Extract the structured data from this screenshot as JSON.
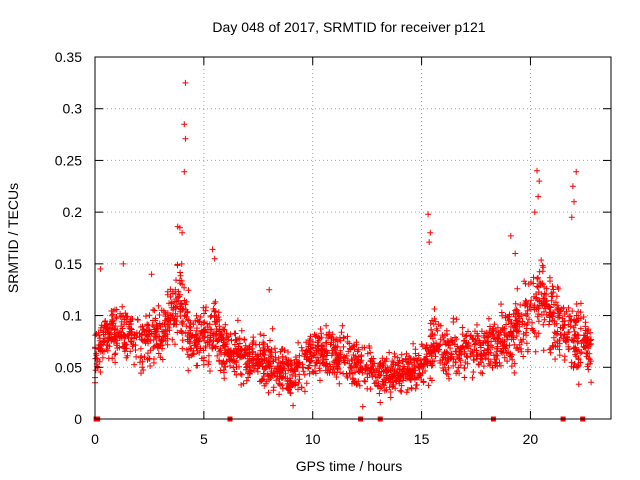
{
  "chart_data": {
    "type": "scatter",
    "title": "Day 048 of 2017, SRMTID for receiver p121",
    "xlabel": "GPS time / hours",
    "ylabel": "SRMTID / TECUs",
    "xlim": [
      0,
      23.7
    ],
    "ylim": [
      0,
      0.35
    ],
    "x_ticks": [
      0,
      5,
      10,
      15,
      20
    ],
    "x_tick_labels": [
      "0",
      "5",
      "10",
      "15",
      "20"
    ],
    "y_ticks": [
      0,
      0.05,
      0.1,
      0.15,
      0.2,
      0.25,
      0.3,
      0.35
    ],
    "y_tick_labels": [
      "0",
      "0.05",
      "0.1",
      "0.15",
      "0.2",
      "0.25",
      "0.3",
      "0.35"
    ],
    "grid": true,
    "marker": "+",
    "series_color": "#ff0000",
    "baseline_markers_x": [
      0.05,
      0.12,
      6.2,
      12.2,
      13.1,
      18.3,
      21.5,
      22.4
    ],
    "envelope": {
      "hours": [
        0,
        1,
        2,
        3,
        3.5,
        4,
        4.5,
        5,
        5.5,
        6,
        7,
        8,
        9,
        10,
        11,
        12,
        13,
        14,
        15,
        15.5,
        16,
        17,
        18,
        19,
        19.5,
        20,
        20.5,
        21,
        21.5,
        22,
        22.5,
        22.8
      ],
      "center": [
        0.07,
        0.085,
        0.075,
        0.08,
        0.1,
        0.11,
        0.07,
        0.08,
        0.09,
        0.065,
        0.06,
        0.055,
        0.045,
        0.065,
        0.06,
        0.055,
        0.045,
        0.045,
        0.05,
        0.07,
        0.065,
        0.065,
        0.07,
        0.08,
        0.09,
        0.1,
        0.12,
        0.1,
        0.09,
        0.08,
        0.075,
        0.07
      ],
      "spread": [
        0.025,
        0.03,
        0.03,
        0.03,
        0.035,
        0.04,
        0.03,
        0.03,
        0.035,
        0.025,
        0.025,
        0.025,
        0.025,
        0.025,
        0.025,
        0.025,
        0.02,
        0.02,
        0.02,
        0.03,
        0.025,
        0.025,
        0.025,
        0.03,
        0.035,
        0.04,
        0.045,
        0.04,
        0.04,
        0.04,
        0.03,
        0.03
      ]
    },
    "coverage_hours": [
      0,
      22.8
    ],
    "point_count": 2200,
    "outliers": [
      {
        "x": 4.15,
        "y": 0.325
      },
      {
        "x": 4.1,
        "y": 0.285
      },
      {
        "x": 4.15,
        "y": 0.271
      },
      {
        "x": 4.1,
        "y": 0.239
      },
      {
        "x": 3.8,
        "y": 0.186
      },
      {
        "x": 3.9,
        "y": 0.185
      },
      {
        "x": 4.0,
        "y": 0.18
      },
      {
        "x": 5.4,
        "y": 0.164
      },
      {
        "x": 5.5,
        "y": 0.155
      },
      {
        "x": 15.3,
        "y": 0.198
      },
      {
        "x": 15.4,
        "y": 0.18
      },
      {
        "x": 15.35,
        "y": 0.171
      },
      {
        "x": 20.3,
        "y": 0.24
      },
      {
        "x": 20.4,
        "y": 0.23
      },
      {
        "x": 20.35,
        "y": 0.215
      },
      {
        "x": 20.2,
        "y": 0.2
      },
      {
        "x": 22.1,
        "y": 0.239
      },
      {
        "x": 21.95,
        "y": 0.225
      },
      {
        "x": 22.0,
        "y": 0.21
      },
      {
        "x": 21.9,
        "y": 0.195
      },
      {
        "x": 19.1,
        "y": 0.177
      },
      {
        "x": 19.3,
        "y": 0.16
      },
      {
        "x": 0.25,
        "y": 0.145
      },
      {
        "x": 1.3,
        "y": 0.15
      },
      {
        "x": 2.6,
        "y": 0.14
      },
      {
        "x": 8.0,
        "y": 0.125
      },
      {
        "x": 0.0,
        "y": 0.035
      },
      {
        "x": 0.0,
        "y": 0.04
      },
      {
        "x": 9.1,
        "y": 0.013
      },
      {
        "x": 12.3,
        "y": 0.012
      },
      {
        "x": 13.1,
        "y": 0.016
      }
    ]
  }
}
